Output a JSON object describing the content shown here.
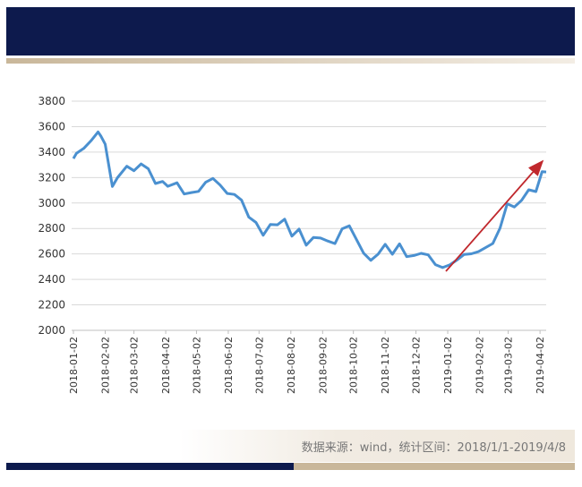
{
  "chart_data": {
    "type": "line",
    "x": [
      "2018-01-02",
      "2018-01-05",
      "2018-01-12",
      "2018-01-19",
      "2018-01-26",
      "2018-01-29",
      "2018-02-02",
      "2018-02-09",
      "2018-02-14",
      "2018-02-23",
      "2018-03-02",
      "2018-03-09",
      "2018-03-16",
      "2018-03-23",
      "2018-03-30",
      "2018-04-04",
      "2018-04-13",
      "2018-04-20",
      "2018-04-27",
      "2018-05-04",
      "2018-05-11",
      "2018-05-18",
      "2018-05-25",
      "2018-06-01",
      "2018-06-08",
      "2018-06-15",
      "2018-06-22",
      "2018-06-29",
      "2018-07-06",
      "2018-07-13",
      "2018-07-20",
      "2018-07-27",
      "2018-08-03",
      "2018-08-10",
      "2018-08-17",
      "2018-08-24",
      "2018-08-31",
      "2018-09-07",
      "2018-09-14",
      "2018-09-21",
      "2018-09-28",
      "2018-10-12",
      "2018-10-19",
      "2018-10-26",
      "2018-11-02",
      "2018-11-09",
      "2018-11-16",
      "2018-11-23",
      "2018-11-30",
      "2018-12-07",
      "2018-12-14",
      "2018-12-21",
      "2018-12-28",
      "2019-01-04",
      "2019-01-11",
      "2019-01-18",
      "2019-01-25",
      "2019-02-01",
      "2019-02-15",
      "2019-02-22",
      "2019-03-01",
      "2019-03-08",
      "2019-03-15",
      "2019-03-22",
      "2019-03-29",
      "2019-04-04",
      "2019-04-08"
    ],
    "values": [
      3349,
      3391,
      3429,
      3488,
      3558,
      3523,
      3462,
      3130,
      3199,
      3289,
      3254,
      3307,
      3269,
      3153,
      3169,
      3131,
      3159,
      3071,
      3082,
      3091,
      3163,
      3193,
      3141,
      3075,
      3067,
      3022,
      2889,
      2847,
      2747,
      2831,
      2829,
      2873,
      2740,
      2795,
      2669,
      2729,
      2725,
      2702,
      2681,
      2797,
      2821,
      2606,
      2550,
      2598,
      2676,
      2598,
      2679,
      2579,
      2588,
      2605,
      2593,
      2516,
      2493,
      2514,
      2553,
      2596,
      2601,
      2618,
      2682,
      2804,
      2994,
      2969,
      3021,
      3104,
      3090,
      3246,
      3244
    ],
    "color": "#4a90d0",
    "xlim": [
      "2018-01-02",
      "2019-04-08"
    ],
    "xticks": [
      "2018-01-02",
      "2018-02-02",
      "2018-03-02",
      "2018-04-02",
      "2018-05-02",
      "2018-06-02",
      "2018-07-02",
      "2018-08-02",
      "2018-09-02",
      "2018-10-02",
      "2018-11-02",
      "2018-12-02",
      "2019-01-02",
      "2019-02-02",
      "2019-03-02",
      "2019-04-02"
    ],
    "ylim": [
      2000,
      3800
    ],
    "yticks": [
      2000,
      2200,
      2400,
      2600,
      2800,
      3000,
      3200,
      3400,
      3600,
      3800
    ],
    "grid": true,
    "note": "数据来源：wind，统计区间：2018/1/1-2019/4/8"
  }
}
